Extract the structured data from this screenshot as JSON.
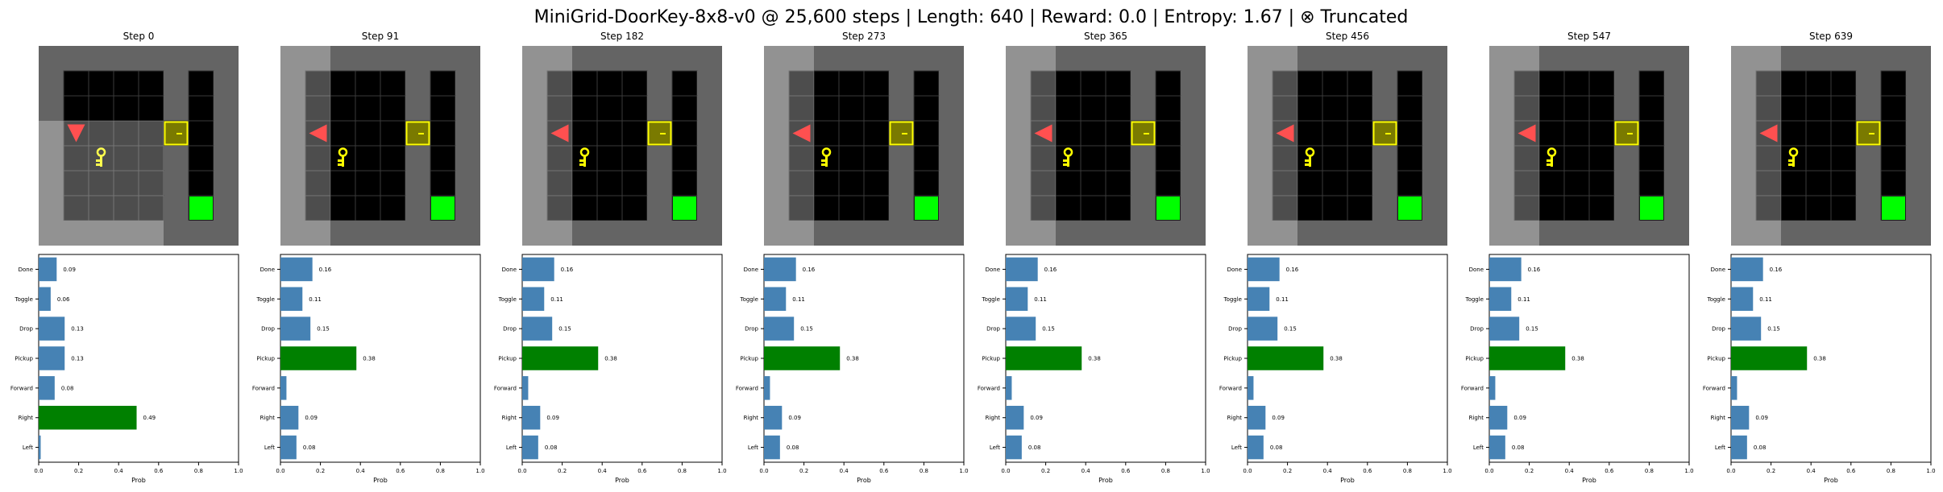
{
  "title": "MiniGrid-DoorKey-8x8-v0 @ 25,600 steps | Length: 640 | Reward: 0.0 | Entropy: 1.67 | ⊗ Truncated",
  "colors": {
    "bar_default": "#4682b4",
    "bar_max": "#008000",
    "wall": "#646464",
    "floor": "#000000",
    "grid_line": "#3a3a3a",
    "visible_tint": "#ffffff",
    "agent": "#ff5050",
    "key": "#ffff00",
    "door": "#7a7a00",
    "door_border": "#ffff00",
    "goal": "#00ff00"
  },
  "frames": [
    {
      "step_label": "Step 0",
      "scene": {
        "agent_col": 1,
        "agent_row": 3,
        "agent_dir": "down",
        "view": "down"
      },
      "chart_data": {
        "type": "bar",
        "orientation": "horizontal",
        "categories": [
          "Done",
          "Toggle",
          "Drop",
          "Pickup",
          "Forward",
          "Right",
          "Left"
        ],
        "values": [
          0.09,
          0.06,
          0.13,
          0.13,
          0.08,
          0.49,
          0.01
        ],
        "labels": [
          "0.09",
          "0.06",
          "0.13",
          "0.13",
          "0.08",
          "0.49",
          ""
        ],
        "xlabel": "Prob",
        "xlim": [
          0,
          1
        ],
        "xticks": [
          "0.0",
          "0.2",
          "0.4",
          "0.6",
          "0.8",
          "1.0"
        ]
      }
    },
    {
      "step_label": "Step 91",
      "scene": {
        "agent_col": 1,
        "agent_row": 3,
        "agent_dir": "left",
        "view": "left"
      },
      "chart_data": {
        "type": "bar",
        "orientation": "horizontal",
        "categories": [
          "Done",
          "Toggle",
          "Drop",
          "Pickup",
          "Forward",
          "Right",
          "Left"
        ],
        "values": [
          0.16,
          0.11,
          0.15,
          0.38,
          0.03,
          0.09,
          0.08
        ],
        "labels": [
          "0.16",
          "0.11",
          "0.15",
          "0.38",
          "",
          "0.09",
          "0.08"
        ],
        "xlabel": "Prob",
        "xlim": [
          0,
          1
        ],
        "xticks": [
          "0.0",
          "0.2",
          "0.4",
          "0.6",
          "0.8",
          "1.0"
        ]
      }
    },
    {
      "step_label": "Step 182",
      "scene": {
        "agent_col": 1,
        "agent_row": 3,
        "agent_dir": "left",
        "view": "left"
      },
      "chart_data": {
        "type": "bar",
        "orientation": "horizontal",
        "categories": [
          "Done",
          "Toggle",
          "Drop",
          "Pickup",
          "Forward",
          "Right",
          "Left"
        ],
        "values": [
          0.16,
          0.11,
          0.15,
          0.38,
          0.03,
          0.09,
          0.08
        ],
        "labels": [
          "0.16",
          "0.11",
          "0.15",
          "0.38",
          "",
          "0.09",
          "0.08"
        ],
        "xlabel": "Prob",
        "xlim": [
          0,
          1
        ],
        "xticks": [
          "0.0",
          "0.2",
          "0.4",
          "0.6",
          "0.8",
          "1.0"
        ]
      }
    },
    {
      "step_label": "Step 273",
      "scene": {
        "agent_col": 1,
        "agent_row": 3,
        "agent_dir": "left",
        "view": "left"
      },
      "chart_data": {
        "type": "bar",
        "orientation": "horizontal",
        "categories": [
          "Done",
          "Toggle",
          "Drop",
          "Pickup",
          "Forward",
          "Right",
          "Left"
        ],
        "values": [
          0.16,
          0.11,
          0.15,
          0.38,
          0.03,
          0.09,
          0.08
        ],
        "labels": [
          "0.16",
          "0.11",
          "0.15",
          "0.38",
          "",
          "0.09",
          "0.08"
        ],
        "xlabel": "Prob",
        "xlim": [
          0,
          1
        ],
        "xticks": [
          "0.0",
          "0.2",
          "0.4",
          "0.6",
          "0.8",
          "1.0"
        ]
      }
    },
    {
      "step_label": "Step 365",
      "scene": {
        "agent_col": 1,
        "agent_row": 3,
        "agent_dir": "left",
        "view": "left"
      },
      "chart_data": {
        "type": "bar",
        "orientation": "horizontal",
        "categories": [
          "Done",
          "Toggle",
          "Drop",
          "Pickup",
          "Forward",
          "Right",
          "Left"
        ],
        "values": [
          0.16,
          0.11,
          0.15,
          0.38,
          0.03,
          0.09,
          0.08
        ],
        "labels": [
          "0.16",
          "0.11",
          "0.15",
          "0.38",
          "",
          "0.09",
          "0.08"
        ],
        "xlabel": "Prob",
        "xlim": [
          0,
          1
        ],
        "xticks": [
          "0.0",
          "0.2",
          "0.4",
          "0.6",
          "0.8",
          "1.0"
        ]
      }
    },
    {
      "step_label": "Step 456",
      "scene": {
        "agent_col": 1,
        "agent_row": 3,
        "agent_dir": "left",
        "view": "left"
      },
      "chart_data": {
        "type": "bar",
        "orientation": "horizontal",
        "categories": [
          "Done",
          "Toggle",
          "Drop",
          "Pickup",
          "Forward",
          "Right",
          "Left"
        ],
        "values": [
          0.16,
          0.11,
          0.15,
          0.38,
          0.03,
          0.09,
          0.08
        ],
        "labels": [
          "0.16",
          "0.11",
          "0.15",
          "0.38",
          "",
          "0.09",
          "0.08"
        ],
        "xlabel": "Prob",
        "xlim": [
          0,
          1
        ],
        "xticks": [
          "0.0",
          "0.2",
          "0.4",
          "0.6",
          "0.8",
          "1.0"
        ]
      }
    },
    {
      "step_label": "Step 547",
      "scene": {
        "agent_col": 1,
        "agent_row": 3,
        "agent_dir": "left",
        "view": "left"
      },
      "chart_data": {
        "type": "bar",
        "orientation": "horizontal",
        "categories": [
          "Done",
          "Toggle",
          "Drop",
          "Pickup",
          "Forward",
          "Right",
          "Left"
        ],
        "values": [
          0.16,
          0.11,
          0.15,
          0.38,
          0.03,
          0.09,
          0.08
        ],
        "labels": [
          "0.16",
          "0.11",
          "0.15",
          "0.38",
          "",
          "0.09",
          "0.08"
        ],
        "xlabel": "Prob",
        "xlim": [
          0,
          1
        ],
        "xticks": [
          "0.0",
          "0.2",
          "0.4",
          "0.6",
          "0.8",
          "1.0"
        ]
      }
    },
    {
      "step_label": "Step 639",
      "scene": {
        "agent_col": 1,
        "agent_row": 3,
        "agent_dir": "left",
        "view": "left"
      },
      "chart_data": {
        "type": "bar",
        "orientation": "horizontal",
        "categories": [
          "Done",
          "Toggle",
          "Drop",
          "Pickup",
          "Forward",
          "Right",
          "Left"
        ],
        "values": [
          0.16,
          0.11,
          0.15,
          0.38,
          0.03,
          0.09,
          0.08
        ],
        "labels": [
          "0.16",
          "0.11",
          "0.15",
          "0.38",
          "",
          "0.09",
          "0.08"
        ],
        "xlabel": "Prob",
        "xlim": [
          0,
          1
        ],
        "xticks": [
          "0.0",
          "0.2",
          "0.4",
          "0.6",
          "0.8",
          "1.0"
        ]
      }
    }
  ]
}
